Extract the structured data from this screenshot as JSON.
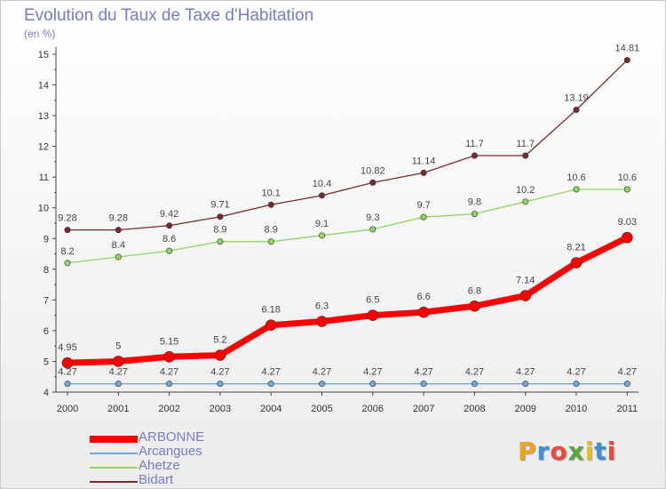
{
  "title": "Evolution du Taux de Taxe d'Habitation",
  "subtitle": "(en %)",
  "logo": {
    "letters": [
      "P",
      "r",
      "o",
      "x",
      "i",
      "t",
      "i"
    ],
    "colors": [
      "#f0a21c",
      "#3f8fd2",
      "#e84b3c",
      "#5aa43c",
      "#e8c21c",
      "#3f8fd2",
      "#e84b3c"
    ]
  },
  "chart_data": {
    "type": "line",
    "x": [
      "2000",
      "2001",
      "2002",
      "2003",
      "2004",
      "2005",
      "2006",
      "2007",
      "2008",
      "2009",
      "2010",
      "2011"
    ],
    "ylim": [
      4,
      15
    ],
    "yticks": [
      "4",
      "5",
      "6",
      "7",
      "8",
      "9",
      "10",
      "11",
      "12",
      "13",
      "14",
      "15"
    ],
    "grid": false,
    "legend_position": "bottom-left",
    "series": [
      {
        "name": "ARBONNE",
        "color": "#ff0000",
        "values": [
          4.95,
          5,
          5.15,
          5.2,
          6.18,
          6.3,
          6.5,
          6.6,
          6.8,
          7.14,
          8.21,
          9.03
        ],
        "labels": [
          "4.95",
          "5",
          "5.15",
          "5.2",
          "6.18",
          "6.3",
          "6.5",
          "6.6",
          "6.8",
          "7.14",
          "8.21",
          "9.03"
        ]
      },
      {
        "name": "Arcangues",
        "color": "#6fa8dc",
        "values": [
          4.27,
          4.27,
          4.27,
          4.27,
          4.27,
          4.27,
          4.27,
          4.27,
          4.27,
          4.27,
          4.27,
          4.27
        ],
        "labels": [
          "4.27",
          "4.27",
          "4.27",
          "4.27",
          "4.27",
          "4.27",
          "4.27",
          "4.27",
          "4.27",
          "4.27",
          "4.27",
          "4.27"
        ]
      },
      {
        "name": "Ahetze",
        "color": "#8fd65c",
        "values": [
          8.2,
          8.4,
          8.6,
          8.9,
          8.9,
          9.1,
          9.3,
          9.7,
          9.8,
          10.2,
          10.6,
          10.6
        ],
        "labels": [
          "8.2",
          "8.4",
          "8.6",
          "8.9",
          "8.9",
          "9.1",
          "9.3",
          "9.7",
          "9.8",
          "10.2",
          "10.6",
          "10.6"
        ]
      },
      {
        "name": "Bidart",
        "color": "#7a2a2a",
        "values": [
          9.28,
          9.28,
          9.42,
          9.71,
          10.1,
          10.4,
          10.82,
          11.14,
          11.7,
          11.7,
          13.19,
          14.81
        ],
        "labels": [
          "9.28",
          "9.28",
          "9.42",
          "9.71",
          "10.1",
          "10.4",
          "10.82",
          "11.14",
          "11.7",
          "11.7",
          "13.19",
          "14.81"
        ]
      }
    ]
  }
}
